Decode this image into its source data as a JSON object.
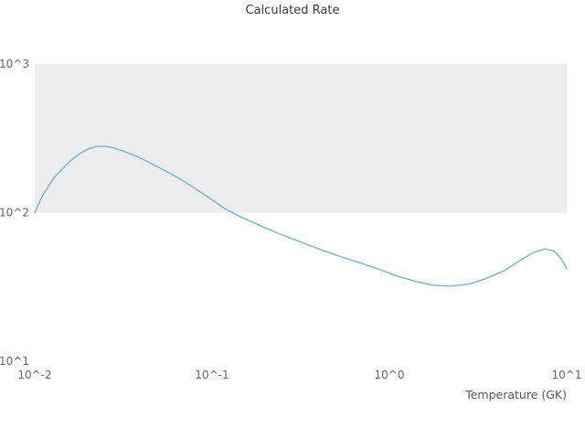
{
  "chart_data": {
    "type": "line",
    "title": "Calculated Rate",
    "xlabel": "Temperature (GK)",
    "ylabel": "",
    "x_scale": "log",
    "y_scale": "log",
    "xlim": [
      0.01,
      10
    ],
    "ylim": [
      10,
      1000
    ],
    "grid": "off",
    "legend": "none",
    "x_ticks": [
      {
        "value": 0.01,
        "label": "10^-2"
      },
      {
        "value": 0.1,
        "label": "10^-1"
      },
      {
        "value": 1,
        "label": "10^0"
      },
      {
        "value": 10,
        "label": "10^1"
      }
    ],
    "y_ticks": [
      {
        "value": 10,
        "label": "10^1"
      },
      {
        "value": 100,
        "label": "10^2"
      },
      {
        "value": 1000,
        "label": "10^3"
      }
    ],
    "band": {
      "y_from": 100,
      "y_to": 1000,
      "color": "#ededed"
    },
    "line_color": "#6aaed6",
    "series": [
      {
        "name": "calculated-rate",
        "x": [
          0.01,
          0.011,
          0.012,
          0.013,
          0.0145,
          0.016,
          0.018,
          0.02,
          0.022,
          0.025,
          0.028,
          0.032,
          0.038,
          0.045,
          0.055,
          0.068,
          0.082,
          0.1,
          0.12,
          0.15,
          0.19,
          0.24,
          0.3,
          0.4,
          0.52,
          0.68,
          0.88,
          1.1,
          1.4,
          1.75,
          2.2,
          2.8,
          3.5,
          4.5,
          5.5,
          6.5,
          7.5,
          8.5,
          9.3,
          10.0
        ],
        "y": [
          100,
          128,
          152,
          175,
          200,
          225,
          250,
          268,
          278,
          280,
          272,
          258,
          238,
          215,
          190,
          165,
          143,
          122,
          105,
          92,
          81,
          72,
          65,
          57,
          51,
          46,
          41.5,
          37.5,
          34.5,
          32.5,
          32,
          33,
          36,
          41,
          48,
          54,
          57,
          55,
          49,
          42
        ]
      }
    ]
  }
}
